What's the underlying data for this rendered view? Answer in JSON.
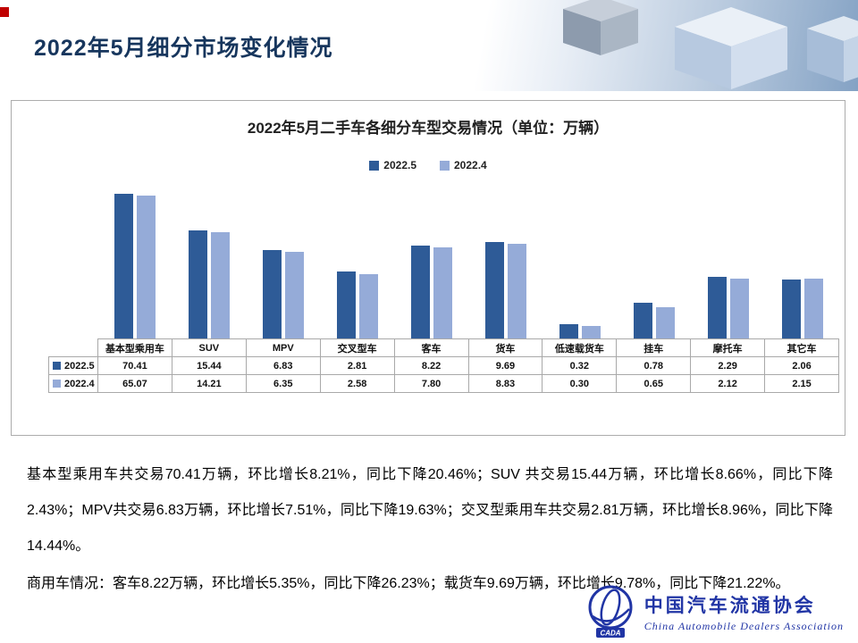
{
  "page": {
    "title": "2022年5月细分市场变化情况"
  },
  "chart": {
    "title": "2022年5月二手车各细分车型交易情况（单位：万辆）"
  },
  "chart_data": {
    "type": "bar",
    "title": "2022年5月二手车各细分车型交易情况",
    "unit": "万辆",
    "y_scale": "log",
    "legend_position": "top",
    "data_table": true,
    "categories": [
      "基本型乘用车",
      "SUV",
      "MPV",
      "交叉型车",
      "客车",
      "货车",
      "低速载货车",
      "挂车",
      "摩托车",
      "其它车"
    ],
    "series": [
      {
        "name": "2022.5",
        "color": "#2E5B97",
        "values": [
          70.41,
          15.44,
          6.83,
          2.81,
          8.22,
          9.69,
          0.32,
          0.78,
          2.29,
          2.06
        ]
      },
      {
        "name": "2022.4",
        "color": "#95ABD8",
        "values": [
          65.07,
          14.21,
          6.35,
          2.58,
          7.8,
          8.83,
          0.3,
          0.65,
          2.12,
          2.15
        ]
      }
    ]
  },
  "body": {
    "paragraph1": "基本型乘用车共交易70.41万辆，环比增长8.21%，同比下降20.46%；SUV 共交易15.44万辆，环比增长8.66%，同比下降2.43%；MPV共交易6.83万辆，环比增长7.51%，同比下降19.63%；交叉型乘用车共交易2.81万辆，环比增长8.96%，同比下降14.44%。",
    "paragraph2": "商用车情况：客车8.22万辆，环比增长5.35%，同比下降26.23%；载货车9.69万辆，环比增长9.78%，同比下降21.22%。"
  },
  "footer": {
    "org_cn": "中国汽车流通协会",
    "org_en": "China Automobile Dealers Association",
    "logo_text": "CADA"
  },
  "colors": {
    "title_blue": "#17365D",
    "accent_red": "#C00000",
    "logo_blue": "#2135A5",
    "series_2022_5": "#2E5B97",
    "series_2022_4": "#95ABD8"
  }
}
